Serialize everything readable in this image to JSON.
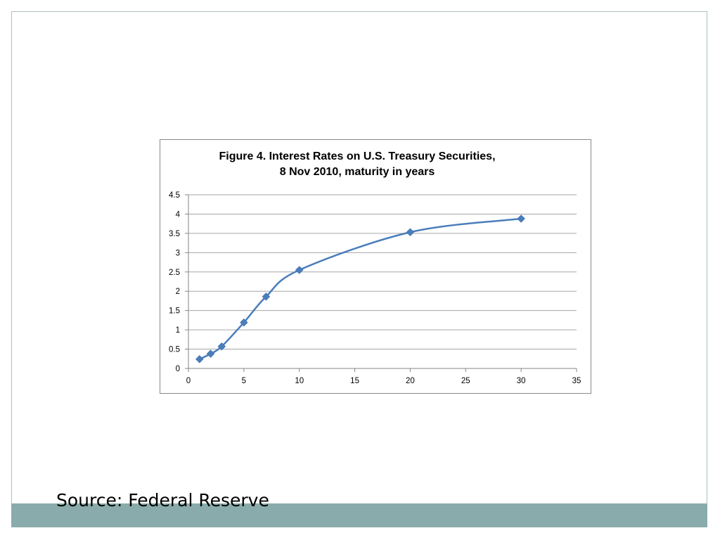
{
  "footer": {
    "source": "Source: Federal Reserve",
    "band_color": "#8aabab"
  },
  "chart_data": {
    "type": "line",
    "title": "Figure 4. Interest Rates on U.S. Treasury Securities,",
    "subtitle": "8 Nov 2010, maturity in years",
    "xlabel": "",
    "ylabel": "",
    "xlim": [
      0,
      35
    ],
    "ylim": [
      0,
      4.5
    ],
    "x_ticks": [
      "0",
      "5",
      "10",
      "15",
      "20",
      "25",
      "30",
      "35"
    ],
    "y_ticks": [
      "0",
      "0.5",
      "1",
      "1.5",
      "2",
      "2.5",
      "3",
      "3.5",
      "4",
      "4.5"
    ],
    "grid": "horizontal",
    "legend": "none",
    "line_color": "#4a7ebb",
    "marker": "diamond",
    "smooth": true,
    "series": [
      {
        "x": [
          1,
          2,
          3,
          5,
          7,
          10,
          20,
          30
        ],
        "values": [
          0.24,
          0.38,
          0.57,
          1.19,
          1.86,
          2.55,
          3.53,
          3.88
        ]
      }
    ]
  }
}
